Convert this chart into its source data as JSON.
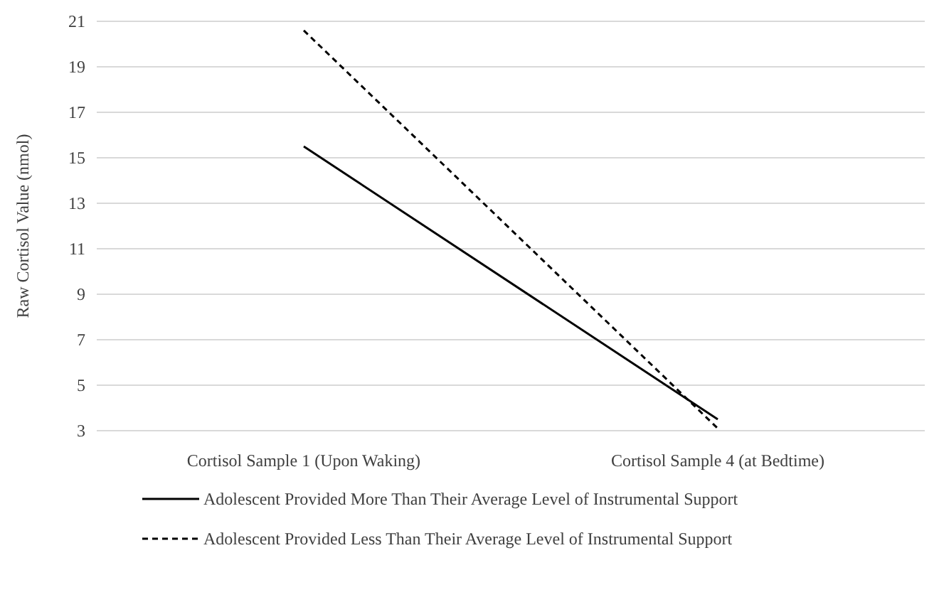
{
  "chart_data": {
    "type": "line",
    "ylabel": "Raw Cortisol Value (nmol)",
    "categories": [
      "Cortisol Sample 1 (Upon Waking)",
      "Cortisol Sample 4 (at Bedtime)"
    ],
    "series": [
      {
        "name": "Adolescent Provided More Than Their Average Level of Instrumental Support",
        "color": "#000000",
        "values": [
          15.5,
          3.5
        ],
        "line_style": "solid"
      },
      {
        "name": "Adolescent Provided Less Than Their Average Level of Instrumental Support",
        "color": "#000000",
        "values": [
          20.6,
          3.1
        ],
        "line_style": "dashed"
      }
    ],
    "ylim": [
      3,
      21
    ],
    "yticks": [
      3,
      5,
      7,
      9,
      11,
      13,
      15,
      17,
      19,
      21
    ],
    "grid": "y",
    "legend": "bottom",
    "marker": "none"
  }
}
